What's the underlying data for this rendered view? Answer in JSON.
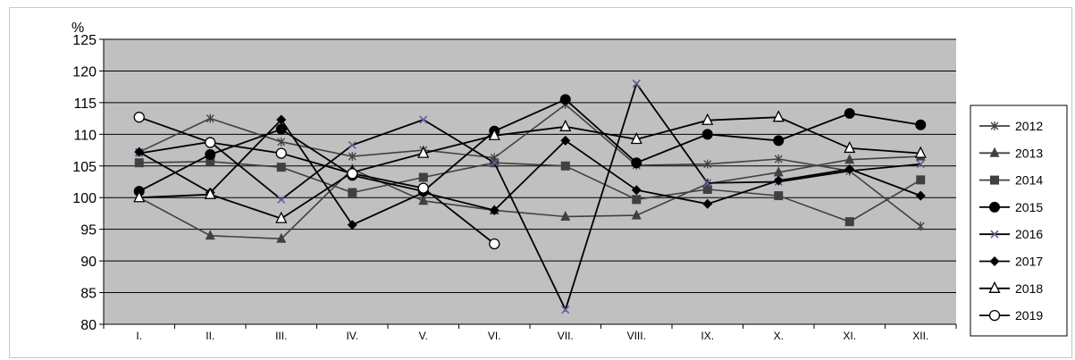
{
  "chart_data": {
    "type": "line",
    "ylabel": "%",
    "ylim": [
      80,
      125
    ],
    "yticks": [
      80,
      85,
      90,
      95,
      100,
      105,
      110,
      115,
      120,
      125
    ],
    "categories": [
      "I.",
      "II.",
      "III.",
      "IV.",
      "V.",
      "VI.",
      "VII.",
      "VIII.",
      "IX.",
      "X.",
      "XI.",
      "XII."
    ],
    "grid": true,
    "legend_position": "right",
    "plot_background": "#c0c0c0",
    "series": [
      {
        "name": "2012",
        "marker": "star",
        "color": "#404040",
        "values": [
          107.2,
          112.5,
          108.8,
          106.5,
          107.5,
          106.3,
          114.7,
          105.1,
          105.3,
          106.1,
          104.2,
          95.5
        ]
      },
      {
        "name": "2013",
        "marker": "triangle-filled",
        "color": "#404040",
        "values": [
          100.0,
          94.0,
          93.5,
          104.5,
          99.5,
          98.0,
          97.0,
          97.2,
          102.2,
          104.0,
          106.0,
          106.5
        ]
      },
      {
        "name": "2014",
        "marker": "square-filled",
        "color": "#404040",
        "values": [
          105.5,
          105.7,
          104.8,
          100.8,
          103.2,
          105.5,
          105.0,
          99.7,
          101.3,
          100.3,
          96.2,
          102.8
        ]
      },
      {
        "name": "2015",
        "marker": "circle-filled",
        "color": "#000000",
        "values": [
          101.0,
          106.8,
          110.8,
          103.5,
          101.0,
          110.5,
          115.5,
          105.5,
          110.0,
          109.0,
          113.3,
          111.5
        ]
      },
      {
        "name": "2016",
        "marker": "x",
        "color": "#000000",
        "values": [
          107.0,
          108.8,
          99.7,
          108.3,
          112.3,
          105.5,
          82.3,
          118.0,
          102.3,
          102.5,
          104.2,
          105.3
        ]
      },
      {
        "name": "2017",
        "marker": "diamond-filled",
        "color": "#000000",
        "values": [
          107.2,
          100.8,
          112.3,
          95.7,
          100.8,
          98.0,
          109.0,
          101.2,
          99.0,
          102.7,
          104.5,
          100.3
        ]
      },
      {
        "name": "2018",
        "marker": "triangle-open",
        "color": "#000000",
        "values": [
          100.0,
          100.5,
          96.7,
          104.0,
          107.0,
          109.8,
          111.2,
          109.2,
          112.2,
          112.7,
          107.8,
          107.0
        ]
      },
      {
        "name": "2019",
        "marker": "circle-open",
        "color": "#000000",
        "values": [
          112.7,
          108.7,
          107.0,
          103.8,
          101.5,
          92.7,
          null,
          null,
          null,
          null,
          null,
          null
        ]
      }
    ]
  }
}
